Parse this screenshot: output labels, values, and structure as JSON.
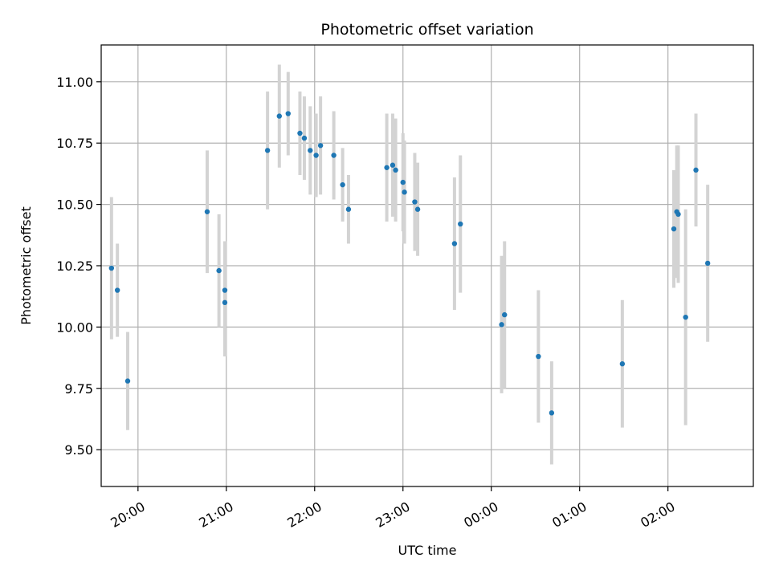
{
  "chart_data": {
    "type": "scatter",
    "title": "Photometric offset variation",
    "xlabel": "UTC time",
    "ylabel": "Photometric offset",
    "x_type": "time",
    "xlim": [
      "19:35",
      "02:58"
    ],
    "ylim": [
      9.35,
      11.15
    ],
    "x_ticks": [
      "20:00",
      "21:00",
      "22:00",
      "23:00",
      "00:00",
      "01:00",
      "02:00"
    ],
    "y_ticks": [
      "9.50",
      "9.75",
      "10.00",
      "10.25",
      "10.50",
      "10.75",
      "11.00"
    ],
    "grid": true,
    "colors": {
      "point": "#1f77b4",
      "errorbar": "#d3d3d3",
      "grid": "#b0b0b0"
    },
    "series": [
      {
        "points": [
          {
            "x": "19:42",
            "y": 10.24,
            "err": 0.29
          },
          {
            "x": "19:46",
            "y": 10.15,
            "err": 0.19
          },
          {
            "x": "19:53",
            "y": 9.78,
            "err": 0.2
          },
          {
            "x": "20:47",
            "y": 10.47,
            "err": 0.25
          },
          {
            "x": "20:55",
            "y": 10.23,
            "err": 0.23
          },
          {
            "x": "20:59",
            "y": 10.1,
            "err": 0.22
          },
          {
            "x": "20:59",
            "y": 10.15,
            "err": 0.2
          },
          {
            "x": "21:28",
            "y": 10.72,
            "err": 0.24
          },
          {
            "x": "21:36",
            "y": 10.86,
            "err": 0.21
          },
          {
            "x": "21:42",
            "y": 10.87,
            "err": 0.17
          },
          {
            "x": "21:50",
            "y": 10.79,
            "err": 0.17
          },
          {
            "x": "21:53",
            "y": 10.77,
            "err": 0.17
          },
          {
            "x": "21:57",
            "y": 10.72,
            "err": 0.18
          },
          {
            "x": "22:01",
            "y": 10.7,
            "err": 0.17
          },
          {
            "x": "22:04",
            "y": 10.74,
            "err": 0.2
          },
          {
            "x": "22:13",
            "y": 10.7,
            "err": 0.18
          },
          {
            "x": "22:19",
            "y": 10.58,
            "err": 0.15
          },
          {
            "x": "22:23",
            "y": 10.48,
            "err": 0.14
          },
          {
            "x": "22:49",
            "y": 10.65,
            "err": 0.22
          },
          {
            "x": "22:53",
            "y": 10.66,
            "err": 0.21
          },
          {
            "x": "22:55",
            "y": 10.64,
            "err": 0.21
          },
          {
            "x": "23:00",
            "y": 10.59,
            "err": 0.2
          },
          {
            "x": "23:01",
            "y": 10.55,
            "err": 0.21
          },
          {
            "x": "23:08",
            "y": 10.51,
            "err": 0.2
          },
          {
            "x": "23:10",
            "y": 10.48,
            "err": 0.19
          },
          {
            "x": "23:35",
            "y": 10.34,
            "err": 0.27
          },
          {
            "x": "23:39",
            "y": 10.42,
            "err": 0.28
          },
          {
            "x": "00:07",
            "y": 10.01,
            "err": 0.28
          },
          {
            "x": "00:09",
            "y": 10.05,
            "err": 0.3
          },
          {
            "x": "00:32",
            "y": 9.88,
            "err": 0.27
          },
          {
            "x": "00:41",
            "y": 9.65,
            "err": 0.21
          },
          {
            "x": "01:29",
            "y": 9.85,
            "err": 0.26
          },
          {
            "x": "02:04",
            "y": 10.4,
            "err": 0.24
          },
          {
            "x": "02:06",
            "y": 10.47,
            "err": 0.27
          },
          {
            "x": "02:07",
            "y": 10.46,
            "err": 0.28
          },
          {
            "x": "02:12",
            "y": 10.04,
            "err": 0.44
          },
          {
            "x": "02:19",
            "y": 10.64,
            "err": 0.23
          },
          {
            "x": "02:27",
            "y": 10.26,
            "err": 0.32
          }
        ]
      }
    ]
  }
}
